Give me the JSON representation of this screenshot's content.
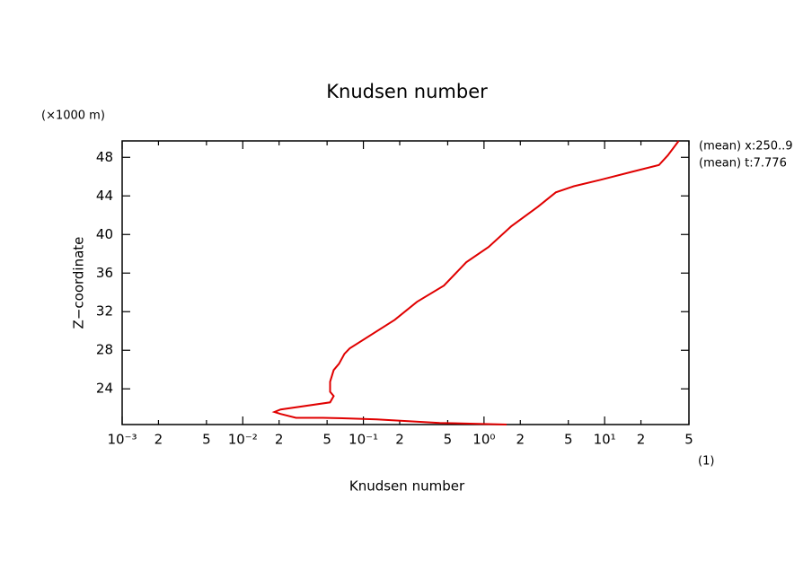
{
  "chart_data": {
    "type": "line",
    "title": "Knudsen number",
    "x_label": "Knudsen number",
    "y_label": "Z−coordinate",
    "y_unit": "(×1000 m)",
    "x_unit": "(1)",
    "annotations": [
      "(mean) x:250..9",
      "(mean) t:7.776"
    ],
    "xscale": "log",
    "xlim": [
      0.001,
      50
    ],
    "ylim": [
      20.3,
      49.7
    ],
    "xticks": [
      {
        "value": 0.001,
        "label": "10⁻³"
      },
      {
        "value": 0.002,
        "label": "2"
      },
      {
        "value": 0.005,
        "label": "5"
      },
      {
        "value": 0.01,
        "label": "10⁻²"
      },
      {
        "value": 0.02,
        "label": "2"
      },
      {
        "value": 0.05,
        "label": "5"
      },
      {
        "value": 0.1,
        "label": "10⁻¹"
      },
      {
        "value": 0.2,
        "label": "2"
      },
      {
        "value": 0.5,
        "label": "5"
      },
      {
        "value": 1,
        "label": "10⁰"
      },
      {
        "value": 2,
        "label": "2"
      },
      {
        "value": 5,
        "label": "5"
      },
      {
        "value": 10,
        "label": "10¹"
      },
      {
        "value": 20,
        "label": "2"
      },
      {
        "value": 50,
        "label": "5"
      }
    ],
    "yticks": [
      24,
      28,
      32,
      36,
      40,
      44,
      48
    ],
    "series": [
      {
        "name": "Knudsen number",
        "color": "#e00000",
        "x": [
          1.54,
          0.43,
          0.129,
          0.077,
          0.046,
          0.0276,
          0.0206,
          0.0183,
          0.0206,
          0.053,
          0.0567,
          0.053,
          0.053,
          0.0567,
          0.0628,
          0.0697,
          0.077,
          0.182,
          0.278,
          0.465,
          0.713,
          1.09,
          1.68,
          2.8,
          3.94,
          5.55,
          9.27,
          16.9,
          28.2,
          33.4,
          41.1
        ],
        "values": [
          20.3,
          20.47,
          20.84,
          20.93,
          21.0,
          21.0,
          21.4,
          21.6,
          21.86,
          22.6,
          23.26,
          23.7,
          24.74,
          25.95,
          26.6,
          27.63,
          28.19,
          31.16,
          33.02,
          34.7,
          37.12,
          38.7,
          40.84,
          42.88,
          44.37,
          45.0,
          45.67,
          46.5,
          47.2,
          48.2,
          49.7
        ]
      }
    ]
  }
}
